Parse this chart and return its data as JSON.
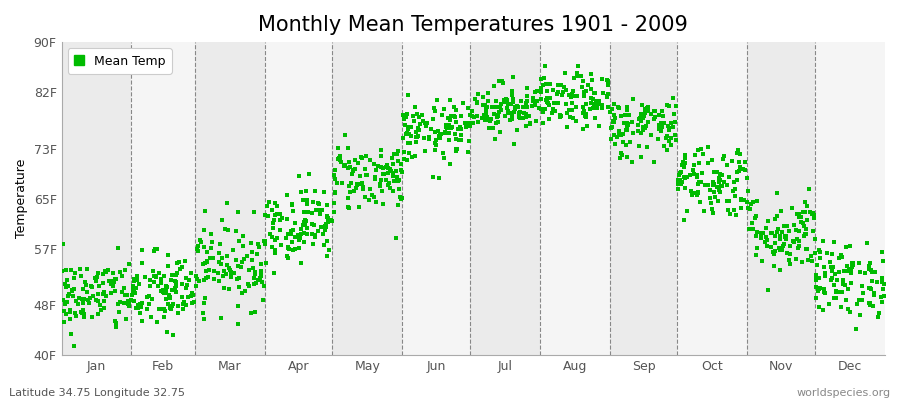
{
  "title": "Monthly Mean Temperatures 1901 - 2009",
  "ylabel": "Temperature",
  "dot_color": "#00bb00",
  "background_color": "#ffffff",
  "plot_bg_color": "#ffffff",
  "stripe_colors": [
    "#ebebeb",
    "#f5f5f5"
  ],
  "ylim": [
    40,
    90
  ],
  "ytick_values": [
    40,
    48,
    57,
    65,
    73,
    82,
    90
  ],
  "ytick_labels": [
    "40F",
    "48F",
    "57F",
    "65F",
    "73F",
    "82F",
    "90F"
  ],
  "months": [
    "Jan",
    "Feb",
    "Mar",
    "Apr",
    "May",
    "Jun",
    "Jul",
    "Aug",
    "Sep",
    "Oct",
    "Nov",
    "Dec"
  ],
  "month_days": [
    31,
    28,
    31,
    30,
    31,
    30,
    31,
    31,
    30,
    31,
    30,
    31
  ],
  "monthly_mean_temps_F": [
    49.5,
    50.0,
    54.5,
    61.0,
    68.5,
    75.5,
    79.5,
    80.5,
    76.5,
    68.0,
    59.5,
    52.0
  ],
  "monthly_std_F": [
    3.0,
    3.2,
    3.5,
    3.0,
    2.8,
    2.5,
    2.0,
    2.2,
    2.5,
    3.0,
    3.2,
    3.0
  ],
  "n_years": 109,
  "legend_label": "Mean Temp",
  "footer_left": "Latitude 34.75 Longitude 32.75",
  "footer_right": "worldspecies.org",
  "title_fontsize": 15,
  "axis_label_fontsize": 9,
  "tick_fontsize": 9,
  "footer_fontsize": 8,
  "marker_size": 5
}
